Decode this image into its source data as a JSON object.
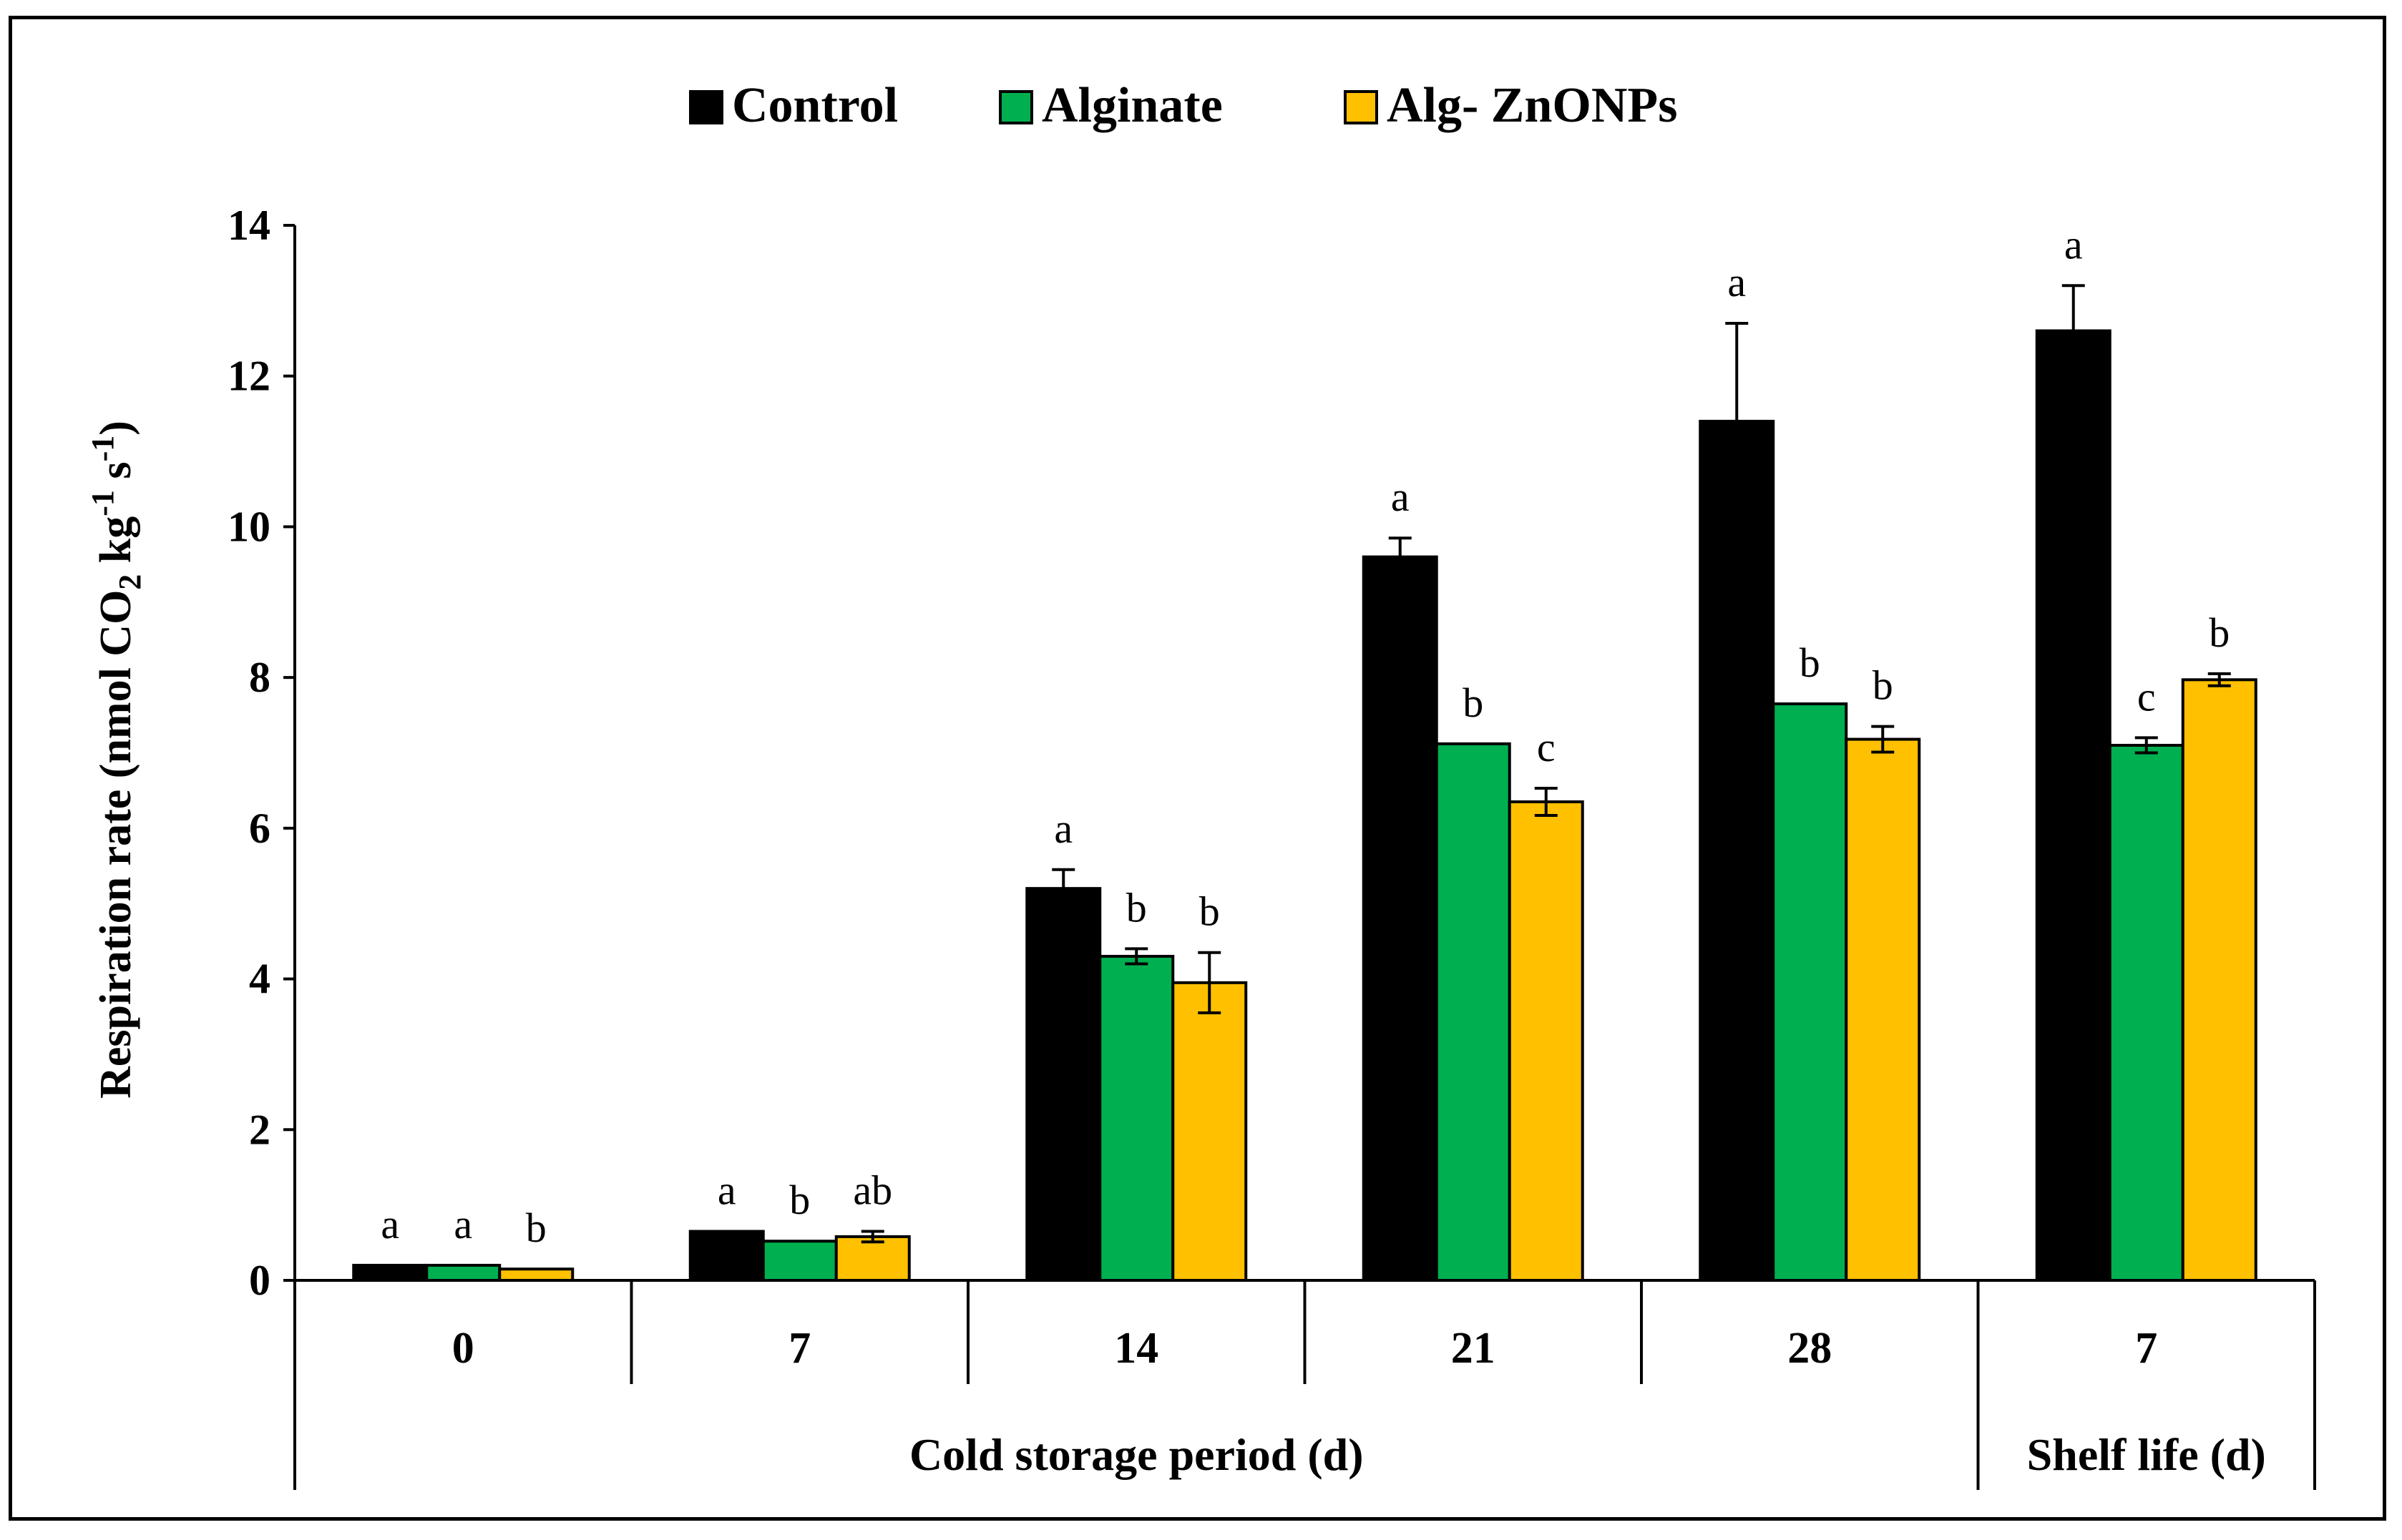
{
  "chart_data": {
    "type": "bar",
    "title": "",
    "ylabel": {
      "parts": [
        "Respiration rate (nmol CO",
        "2",
        " kg",
        "-1",
        " s",
        "-1",
        ")"
      ]
    },
    "xlabel_groups": [
      {
        "label": "Cold storage period (d)"
      },
      {
        "label": "Shelf life (d)"
      }
    ],
    "ylim": [
      0,
      14
    ],
    "yticks": [
      "0",
      "2",
      "4",
      "6",
      "8",
      "10",
      "12",
      "14"
    ],
    "categories": [
      "0",
      "7",
      "14",
      "21",
      "28",
      "7"
    ],
    "series": [
      {
        "name": "Control",
        "color": "#000000",
        "values": [
          0.2,
          0.65,
          5.2,
          9.6,
          11.4,
          12.6
        ],
        "errors": [
          0.0,
          0.0,
          0.25,
          0.25,
          1.3,
          0.6
        ],
        "letters": [
          "a",
          "a",
          "a",
          "a",
          "a",
          "a"
        ]
      },
      {
        "name": "Alginate",
        "color": "#00b050",
        "values": [
          0.2,
          0.52,
          4.3,
          7.12,
          7.65,
          7.1
        ],
        "errors": [
          0.0,
          0.0,
          0.1,
          0.0,
          0.0,
          0.1
        ],
        "letters": [
          "a",
          "b",
          "b",
          "b",
          "b",
          "c"
        ]
      },
      {
        "name": "Alg- ZnONPs",
        "color": "#ffc000",
        "values": [
          0.15,
          0.58,
          3.95,
          6.35,
          7.18,
          7.97
        ],
        "errors": [
          0.0,
          0.07,
          0.4,
          0.18,
          0.17,
          0.08
        ],
        "letters": [
          "b",
          "ab",
          "b",
          "c",
          "b",
          "b"
        ]
      }
    ],
    "legend_position": "top-center",
    "grid": false
  }
}
